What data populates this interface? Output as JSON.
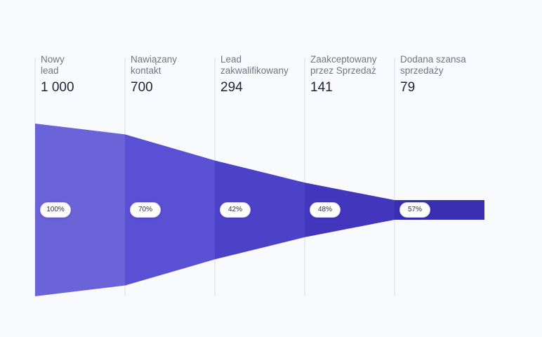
{
  "chart_data": {
    "type": "funnel",
    "stages": [
      {
        "label": "Nowy\nlead",
        "value": 1000,
        "value_text": "1 000",
        "conversion": "100%"
      },
      {
        "label": "Nawiązany\nkontakt",
        "value": 700,
        "value_text": "700",
        "conversion": "70%"
      },
      {
        "label": "Lead\nzakwalifikowany",
        "value": 294,
        "value_text": "294",
        "conversion": "42%"
      },
      {
        "label": "Zaakceptowany\nprzez Sprzedaż",
        "value": 141,
        "value_text": "141",
        "conversion": "48%"
      },
      {
        "label": "Dodana szansa\nsprzedaży",
        "value": 79,
        "value_text": "79",
        "conversion": "57%"
      }
    ],
    "colors": [
      "#6b63d8",
      "#5a50d4",
      "#4c42c8",
      "#4236bd",
      "#3a2fb0"
    ]
  }
}
